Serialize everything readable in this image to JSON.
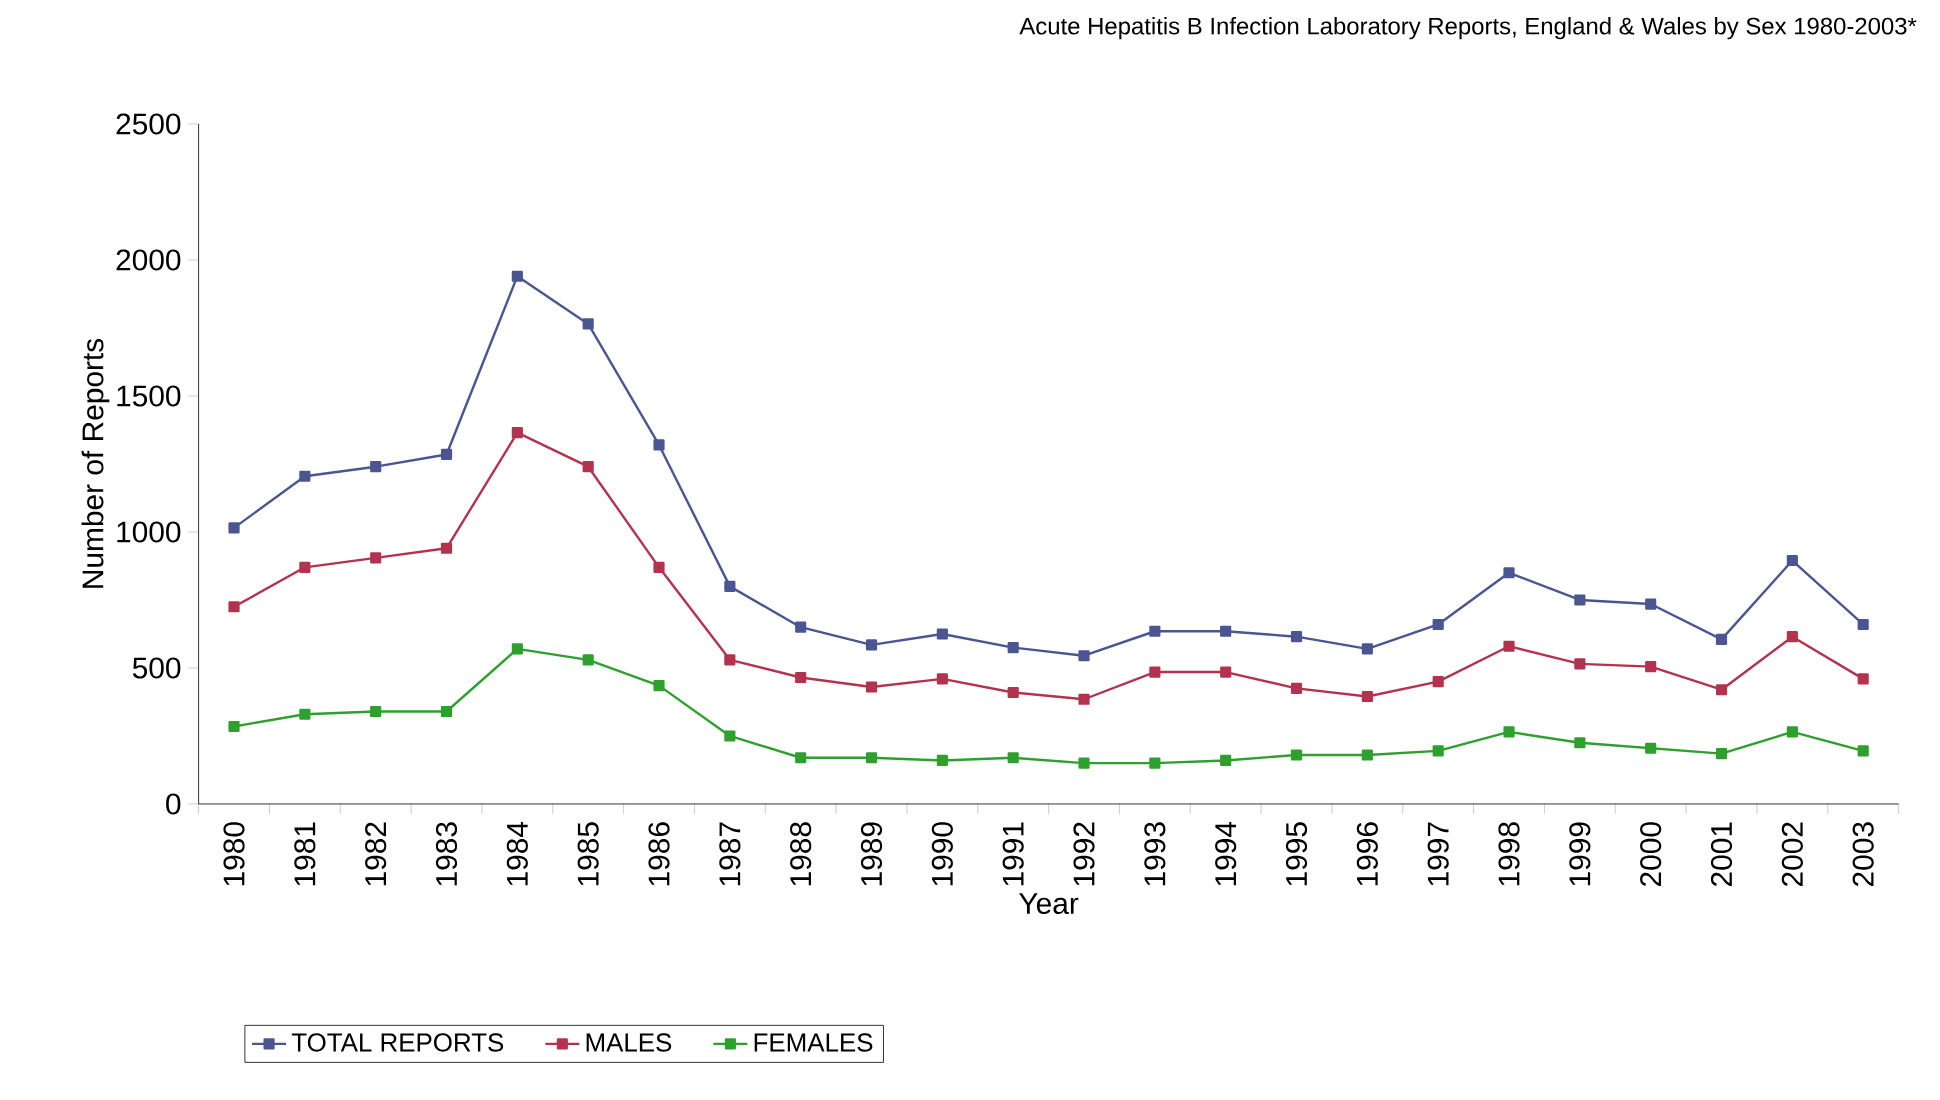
{
  "chart_data": {
    "type": "line",
    "title": "Acute Hepatitis B Infection Laboratory Reports, England & Wales by Sex 1980-2003*",
    "xlabel": "Year",
    "ylabel": "Number of Reports",
    "categories": [
      "1980",
      "1981",
      "1982",
      "1983",
      "1984",
      "1985",
      "1986",
      "1987",
      "1988",
      "1989",
      "1990",
      "1991",
      "1992",
      "1993",
      "1994",
      "1995",
      "1996",
      "1997",
      "1998",
      "1999",
      "2000",
      "2001",
      "2002",
      "2003"
    ],
    "series": [
      {
        "name": "TOTAL REPORTS",
        "color": "#4a5592",
        "values": [
          1015,
          1205,
          1240,
          1285,
          1940,
          1765,
          1320,
          800,
          650,
          585,
          625,
          575,
          545,
          635,
          635,
          615,
          570,
          660,
          850,
          750,
          735,
          605,
          895,
          660
        ]
      },
      {
        "name": "MALES",
        "color": "#b3334f",
        "values": [
          725,
          870,
          905,
          940,
          1365,
          1240,
          870,
          530,
          465,
          430,
          460,
          410,
          385,
          485,
          485,
          425,
          395,
          450,
          580,
          515,
          505,
          420,
          615,
          460
        ]
      },
      {
        "name": "FEMALES",
        "color": "#2ea02e",
        "values": [
          285,
          330,
          340,
          340,
          570,
          530,
          435,
          250,
          170,
          170,
          160,
          170,
          150,
          150,
          160,
          180,
          180,
          195,
          265,
          225,
          205,
          185,
          265,
          195
        ]
      }
    ],
    "ylim": [
      0,
      2500
    ],
    "yticks": [
      0,
      500,
      1000,
      1500,
      2000,
      2500
    ],
    "grid": false,
    "legend": "bottom",
    "marker": "square",
    "line_style": "solid"
  }
}
